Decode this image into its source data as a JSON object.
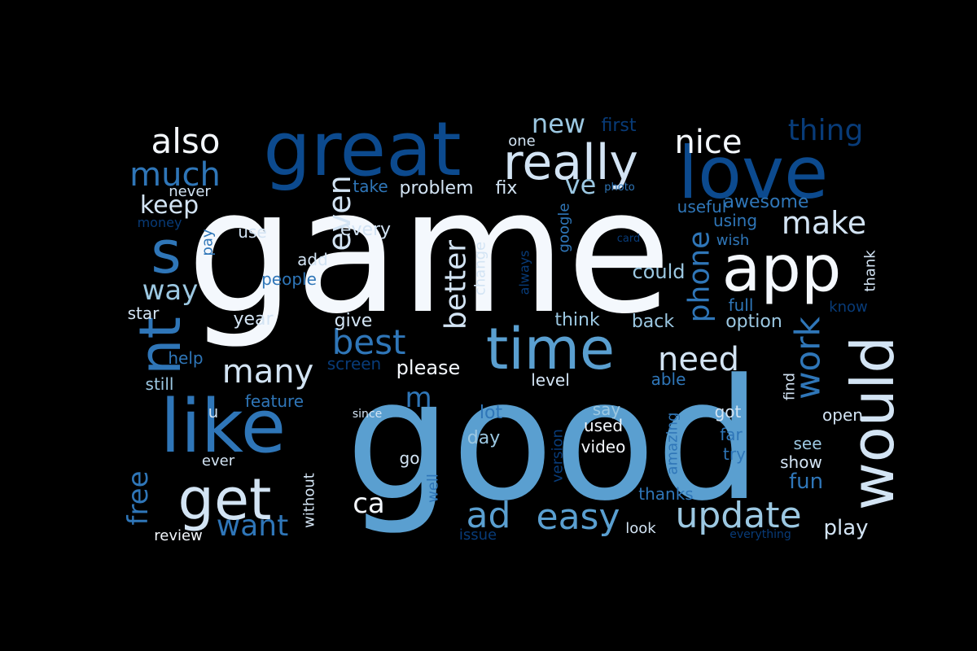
{
  "background": "#000000",
  "palette": {
    "white": "#f4f8fd",
    "pale": "#d3e4f4",
    "light": "#9cc8e2",
    "mid": "#5a9fd0",
    "blue": "#2f76b8",
    "navy": "#0c4a8e",
    "deep": "#083b78"
  },
  "words": [
    {
      "text": "game",
      "color": "white"
    },
    {
      "text": "good",
      "color": "mid"
    },
    {
      "text": "great",
      "color": "navy"
    },
    {
      "text": "love",
      "color": "navy"
    },
    {
      "text": "time",
      "color": "mid"
    },
    {
      "text": "like",
      "color": "blue"
    },
    {
      "text": "app",
      "color": "white"
    },
    {
      "text": "would",
      "color": "pale"
    },
    {
      "text": "get",
      "color": "pale"
    },
    {
      "text": "really",
      "color": "pale"
    },
    {
      "text": "s",
      "color": "blue"
    },
    {
      "text": "nt",
      "color": "blue"
    },
    {
      "text": "best",
      "color": "blue"
    },
    {
      "text": "work",
      "color": "blue"
    },
    {
      "text": "need",
      "color": "pale"
    },
    {
      "text": "update",
      "color": "light"
    },
    {
      "text": "easy",
      "color": "mid"
    },
    {
      "text": "also",
      "color": "white"
    },
    {
      "text": "nice",
      "color": "white"
    },
    {
      "text": "thing",
      "color": "deep"
    },
    {
      "text": "much",
      "color": "blue"
    },
    {
      "text": "even",
      "color": "pale"
    },
    {
      "text": "better",
      "color": "pale"
    },
    {
      "text": "phone",
      "color": "blue"
    },
    {
      "text": "many",
      "color": "pale"
    },
    {
      "text": "make",
      "color": "pale"
    },
    {
      "text": "ad",
      "color": "mid"
    },
    {
      "text": "ca",
      "color": "white"
    },
    {
      "text": "m",
      "color": "blue"
    },
    {
      "text": "want",
      "color": "blue"
    },
    {
      "text": "free",
      "color": "blue"
    },
    {
      "text": "keep",
      "color": "pale"
    },
    {
      "text": "way",
      "color": "light"
    },
    {
      "text": "new",
      "color": "light"
    },
    {
      "text": "ve",
      "color": "light"
    },
    {
      "text": "could",
      "color": "light"
    },
    {
      "text": "play",
      "color": "pale"
    },
    {
      "text": "fun",
      "color": "blue"
    },
    {
      "text": "first",
      "color": "deep"
    },
    {
      "text": "one",
      "color": "pale"
    },
    {
      "text": "never",
      "color": "pale"
    },
    {
      "text": "take",
      "color": "blue"
    },
    {
      "text": "problem",
      "color": "pale"
    },
    {
      "text": "fix",
      "color": "pale"
    },
    {
      "text": "photo",
      "color": "blue"
    },
    {
      "text": "useful",
      "color": "blue"
    },
    {
      "text": "awesome",
      "color": "blue"
    },
    {
      "text": "money",
      "color": "deep"
    },
    {
      "text": "use",
      "color": "pale"
    },
    {
      "text": "every",
      "color": "pale"
    },
    {
      "text": "google",
      "color": "blue"
    },
    {
      "text": "using",
      "color": "blue"
    },
    {
      "text": "card",
      "color": "deep"
    },
    {
      "text": "wish",
      "color": "blue"
    },
    {
      "text": "pay",
      "color": "blue"
    },
    {
      "text": "add",
      "color": "pale"
    },
    {
      "text": "people",
      "color": "blue"
    },
    {
      "text": "change",
      "color": "pale"
    },
    {
      "text": "always",
      "color": "deep"
    },
    {
      "text": "thank",
      "color": "pale"
    },
    {
      "text": "star",
      "color": "pale"
    },
    {
      "text": "year",
      "color": "pale"
    },
    {
      "text": "give",
      "color": "pale"
    },
    {
      "text": "think",
      "color": "light"
    },
    {
      "text": "back",
      "color": "light"
    },
    {
      "text": "full",
      "color": "blue"
    },
    {
      "text": "option",
      "color": "light"
    },
    {
      "text": "know",
      "color": "deep"
    },
    {
      "text": "help",
      "color": "blue"
    },
    {
      "text": "screen",
      "color": "deep"
    },
    {
      "text": "please",
      "color": "white"
    },
    {
      "text": "still",
      "color": "light"
    },
    {
      "text": "level",
      "color": "pale"
    },
    {
      "text": "able",
      "color": "blue"
    },
    {
      "text": "find",
      "color": "pale"
    },
    {
      "text": "feature",
      "color": "blue"
    },
    {
      "text": "u",
      "color": "pale"
    },
    {
      "text": "since",
      "color": "pale"
    },
    {
      "text": "lot",
      "color": "blue"
    },
    {
      "text": "say",
      "color": "light"
    },
    {
      "text": "got",
      "color": "pale"
    },
    {
      "text": "open",
      "color": "pale"
    },
    {
      "text": "used",
      "color": "white"
    },
    {
      "text": "version",
      "color": "deep"
    },
    {
      "text": "day",
      "color": "light"
    },
    {
      "text": "video",
      "color": "white"
    },
    {
      "text": "amazing",
      "color": "blue"
    },
    {
      "text": "far",
      "color": "blue"
    },
    {
      "text": "see",
      "color": "light"
    },
    {
      "text": "try",
      "color": "blue"
    },
    {
      "text": "ever",
      "color": "pale"
    },
    {
      "text": "go",
      "color": "pale"
    },
    {
      "text": "show",
      "color": "pale"
    },
    {
      "text": "without",
      "color": "pale"
    },
    {
      "text": "well",
      "color": "blue"
    },
    {
      "text": "thanks",
      "color": "blue"
    },
    {
      "text": "review",
      "color": "white"
    },
    {
      "text": "issue",
      "color": "deep"
    },
    {
      "text": "look",
      "color": "pale"
    },
    {
      "text": "everything",
      "color": "deep"
    }
  ]
}
